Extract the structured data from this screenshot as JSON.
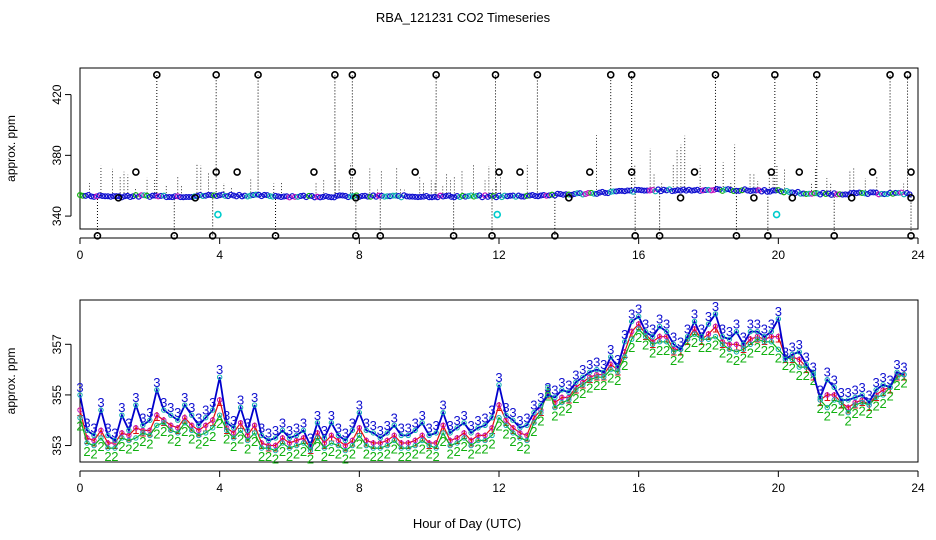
{
  "figure": {
    "title": "RBA_121231  CO2 Timeseries",
    "xlabel": "Hour of Day (UTC)"
  },
  "colors": {
    "axis": "#000000",
    "outlier_marker": "#000000",
    "flagged_marker": "#00cccc",
    "stem_line": "#000000",
    "series_1": "#e01010",
    "series_2": "#10b010",
    "series_3": "#1010d0",
    "series_3_line": "#0000cc",
    "cyan_marker": "#10b0b0",
    "magenta_marker": "#c010c0"
  },
  "chart_data": [
    {
      "type": "scatter",
      "ylabel": "approx. ppm",
      "xlim": [
        0,
        24
      ],
      "ylim": [
        331.5,
        437.5
      ],
      "x_ticks": [
        0,
        4,
        8,
        12,
        16,
        20,
        24
      ],
      "y_ticks": [
        340,
        380,
        420
      ],
      "y_tick_labels": [
        "340",
        "380",
        "420"
      ],
      "x_tick_labels": [
        "0",
        "4",
        "8",
        "12",
        "16",
        "20",
        "24"
      ],
      "grid": false,
      "baseline": [
        [
          0.0,
          353.5
        ],
        [
          1.0,
          353.0
        ],
        [
          2.0,
          353.3
        ],
        [
          3.0,
          353.0
        ],
        [
          4.0,
          353.8
        ],
        [
          5.0,
          353.5
        ],
        [
          6.0,
          353.0
        ],
        [
          7.0,
          353.0
        ],
        [
          8.0,
          353.0
        ],
        [
          9.0,
          353.0
        ],
        [
          10.0,
          353.0
        ],
        [
          11.0,
          353.0
        ],
        [
          12.0,
          353.0
        ],
        [
          13.0,
          353.5
        ],
        [
          14.0,
          354.3
        ],
        [
          15.0,
          355.5
        ],
        [
          16.0,
          356.8
        ],
        [
          17.0,
          357.0
        ],
        [
          18.0,
          357.3
        ],
        [
          19.0,
          357.0
        ],
        [
          20.0,
          356.5
        ],
        [
          21.0,
          354.5
        ],
        [
          22.0,
          354.8
        ],
        [
          23.0,
          355.0
        ],
        [
          23.8,
          354.8
        ]
      ],
      "high_outliers": [
        2.2,
        3.9,
        5.1,
        7.3,
        7.8,
        10.2,
        11.9,
        13.1,
        15.2,
        15.8,
        18.2,
        19.9,
        21.1,
        23.2,
        23.7
      ],
      "high_value": 433,
      "low_outliers": [
        0.5,
        2.7,
        3.8,
        5.6,
        7.9,
        8.6,
        10.7,
        11.8,
        13.6,
        15.9,
        16.6,
        18.8,
        19.7,
        21.6,
        23.8
      ],
      "low_value": 327,
      "mid_markers": [
        [
          1.6,
          369
        ],
        [
          3.9,
          369
        ],
        [
          4.5,
          369
        ],
        [
          6.7,
          369
        ],
        [
          7.8,
          369
        ],
        [
          9.6,
          369
        ],
        [
          12.0,
          369
        ],
        [
          12.6,
          369
        ],
        [
          14.6,
          369
        ],
        [
          15.8,
          369
        ],
        [
          17.6,
          369
        ],
        [
          19.8,
          369
        ],
        [
          20.6,
          369
        ],
        [
          22.7,
          369
        ],
        [
          23.8,
          369
        ],
        [
          1.1,
          352
        ],
        [
          3.3,
          352
        ],
        [
          7.9,
          352
        ],
        [
          14.0,
          352
        ],
        [
          17.2,
          352
        ],
        [
          19.3,
          352
        ],
        [
          20.4,
          352
        ],
        [
          22.1,
          352
        ],
        [
          23.8,
          352
        ]
      ],
      "flagged_markers": [
        [
          3.95,
          341
        ],
        [
          11.95,
          341
        ],
        [
          19.95,
          341
        ]
      ]
    },
    {
      "type": "line",
      "ylabel": "approx. ppm",
      "xlim": [
        0,
        24
      ],
      "ylim": [
        352.35,
        358.75
      ],
      "x_ticks": [
        0,
        4,
        8,
        12,
        16,
        20,
        24
      ],
      "x_tick_labels": [
        "0",
        "4",
        "8",
        "12",
        "16",
        "20",
        "24"
      ],
      "y_ticks": [
        353,
        355,
        357
      ],
      "y_tick_labels": [
        "353",
        "355",
        "357"
      ],
      "grid": false,
      "series": [
        {
          "marker": "3",
          "x": [
            0.0,
            0.2,
            0.4,
            0.6,
            0.8,
            1.0,
            1.2,
            1.4,
            1.6,
            1.8,
            2.0,
            2.2,
            2.4,
            2.6,
            2.8,
            3.0,
            3.2,
            3.4,
            3.6,
            3.8,
            4.0,
            4.2,
            4.4,
            4.6,
            4.8,
            5.0,
            5.2,
            5.4,
            5.6,
            5.8,
            6.0,
            6.2,
            6.4,
            6.6,
            6.8,
            7.0,
            7.2,
            7.4,
            7.6,
            7.8,
            8.0,
            8.2,
            8.4,
            8.6,
            8.8,
            9.0,
            9.2,
            9.4,
            9.6,
            9.8,
            10.0,
            10.2,
            10.4,
            10.6,
            10.8,
            11.0,
            11.2,
            11.4,
            11.6,
            11.8,
            12.0,
            12.2,
            12.4,
            12.6,
            12.8,
            13.0,
            13.2,
            13.4,
            13.6,
            13.8,
            14.0,
            14.2,
            14.4,
            14.6,
            14.8,
            15.0,
            15.2,
            15.4,
            15.6,
            15.8,
            16.0,
            16.2,
            16.4,
            16.6,
            16.8,
            17.0,
            17.2,
            17.4,
            17.6,
            17.8,
            18.0,
            18.2,
            18.4,
            18.6,
            18.8,
            19.0,
            19.2,
            19.4,
            19.6,
            19.8,
            20.0,
            20.2,
            20.4,
            20.6,
            20.8,
            21.0,
            21.2,
            21.4,
            21.6,
            21.8,
            22.0,
            22.2,
            22.4,
            22.6,
            22.8,
            23.0,
            23.2,
            23.4,
            23.6
          ],
          "y": [
            355.0,
            353.6,
            353.4,
            354.4,
            353.4,
            353.2,
            354.2,
            353.6,
            354.6,
            353.8,
            354.0,
            355.2,
            354.4,
            354.2,
            354.0,
            354.6,
            354.2,
            353.8,
            354.1,
            354.4,
            355.7,
            353.9,
            353.7,
            354.5,
            353.6,
            354.6,
            353.4,
            353.2,
            353.3,
            353.6,
            353.3,
            353.4,
            353.6,
            353.0,
            353.9,
            353.3,
            353.9,
            353.4,
            353.2,
            353.6,
            354.3,
            353.6,
            353.5,
            353.3,
            353.5,
            353.8,
            353.4,
            353.4,
            353.6,
            353.9,
            353.4,
            353.5,
            354.3,
            353.5,
            353.7,
            353.9,
            353.5,
            353.7,
            353.8,
            354.1,
            355.4,
            354.2,
            354.0,
            353.7,
            353.8,
            354.3,
            354.6,
            355.0,
            354.9,
            355.2,
            355.1,
            355.5,
            355.7,
            355.9,
            356.0,
            355.9,
            356.5,
            356.1,
            357.1,
            357.9,
            358.1,
            357.5,
            357.3,
            357.7,
            357.5,
            357.0,
            356.8,
            357.3,
            357.9,
            357.3,
            357.8,
            358.2,
            357.3,
            357.2,
            357.5,
            357.0,
            357.5,
            357.5,
            357.3,
            357.5,
            358.0,
            356.4,
            356.6,
            356.7,
            356.2,
            355.8,
            354.9,
            355.6,
            355.3,
            354.8,
            354.8,
            354.9,
            355.0,
            354.7,
            355.2,
            355.4,
            355.3,
            355.9,
            355.8
          ]
        },
        {
          "marker": "2",
          "x": [
            0.0,
            0.2,
            0.4,
            0.6,
            0.8,
            1.0,
            1.2,
            1.4,
            1.6,
            1.8,
            2.0,
            2.2,
            2.4,
            2.6,
            2.8,
            3.0,
            3.2,
            3.4,
            3.6,
            3.8,
            4.0,
            4.2,
            4.4,
            4.6,
            4.8,
            5.0,
            5.2,
            5.4,
            5.6,
            5.8,
            6.0,
            6.2,
            6.4,
            6.6,
            6.8,
            7.0,
            7.2,
            7.4,
            7.6,
            7.8,
            8.0,
            8.2,
            8.4,
            8.6,
            8.8,
            9.0,
            9.2,
            9.4,
            9.6,
            9.8,
            10.0,
            10.2,
            10.4,
            10.6,
            10.8,
            11.0,
            11.2,
            11.4,
            11.6,
            11.8,
            12.0,
            12.2,
            12.4,
            12.6,
            12.8,
            13.0,
            13.2,
            13.4,
            13.6,
            13.8,
            14.0,
            14.2,
            14.4,
            14.6,
            14.8,
            15.0,
            15.2,
            15.4,
            15.6,
            15.8,
            16.0,
            16.2,
            16.4,
            16.6,
            16.8,
            17.0,
            17.2,
            17.4,
            17.6,
            17.8,
            18.0,
            18.2,
            18.4,
            18.6,
            18.8,
            19.0,
            19.2,
            19.4,
            19.6,
            19.8,
            20.0,
            20.2,
            20.4,
            20.6,
            20.8,
            21.0,
            21.2,
            21.4,
            21.6,
            21.8,
            22.0,
            22.2,
            22.4,
            22.6,
            22.8,
            23.0,
            23.2,
            23.4,
            23.6
          ],
          "y": [
            354.1,
            353.1,
            353.0,
            353.3,
            352.9,
            352.9,
            353.3,
            353.2,
            353.3,
            353.5,
            353.4,
            353.8,
            353.9,
            353.6,
            353.5,
            353.9,
            353.6,
            353.4,
            353.5,
            353.7,
            354.2,
            353.6,
            353.3,
            353.6,
            353.2,
            353.5,
            352.9,
            352.9,
            352.8,
            353.1,
            352.9,
            353.0,
            353.1,
            352.8,
            353.3,
            352.9,
            353.1,
            353.0,
            352.8,
            353.0,
            353.4,
            353.0,
            352.9,
            352.9,
            353.0,
            353.2,
            352.9,
            352.9,
            353.0,
            353.2,
            353.0,
            352.9,
            353.5,
            353.0,
            353.1,
            353.3,
            353.0,
            353.2,
            353.2,
            353.4,
            354.1,
            353.8,
            353.5,
            353.3,
            353.2,
            353.9,
            354.3,
            355.3,
            354.5,
            354.7,
            354.8,
            355.2,
            355.4,
            355.6,
            355.7,
            355.7,
            356.0,
            355.9,
            356.5,
            357.2,
            357.6,
            357.3,
            357.0,
            357.1,
            357.1,
            356.7,
            356.8,
            357.2,
            357.4,
            357.2,
            357.2,
            357.3,
            357.0,
            356.8,
            356.7,
            356.8,
            357.0,
            357.2,
            357.1,
            357.1,
            356.8,
            356.5,
            356.4,
            356.1,
            356.1,
            355.9,
            354.8,
            354.5,
            354.8,
            354.7,
            354.3,
            354.6,
            354.7,
            354.6,
            354.9,
            355.0,
            355.3,
            355.7,
            355.8
          ]
        },
        {
          "marker": "1",
          "x": [
            0.0,
            0.2,
            0.4,
            0.6,
            0.8,
            1.0,
            1.2,
            1.4,
            1.6,
            1.8,
            2.0,
            2.2,
            2.4,
            2.6,
            2.8,
            3.0,
            3.2,
            3.4,
            3.6,
            3.8,
            4.0,
            4.2,
            4.4,
            4.6,
            4.8,
            5.0,
            5.2,
            5.4,
            5.6,
            5.8,
            6.0,
            6.2,
            6.4,
            6.6,
            6.8,
            7.0,
            7.2,
            7.4,
            7.6,
            7.8,
            8.0,
            8.2,
            8.4,
            8.6,
            8.8,
            9.0,
            9.2,
            9.4,
            9.6,
            9.8,
            10.0,
            10.2,
            10.4,
            10.6,
            10.8,
            11.0,
            11.2,
            11.4,
            11.6,
            11.8,
            12.0,
            12.2,
            12.4,
            12.6,
            12.8,
            13.0,
            13.2,
            13.4,
            13.6,
            13.8,
            14.0,
            14.2,
            14.4,
            14.6,
            14.8,
            15.0,
            15.2,
            15.4,
            15.6,
            15.8,
            16.0,
            16.2,
            16.4,
            16.6,
            16.8,
            17.0,
            17.2,
            17.4,
            17.6,
            17.8,
            18.0,
            18.2,
            18.4,
            18.6,
            18.8,
            19.0,
            19.2,
            19.4,
            19.6,
            19.8,
            20.0,
            20.2,
            20.4,
            20.6,
            20.8,
            21.0,
            21.2,
            21.4,
            21.6,
            21.8,
            22.0,
            22.2,
            22.4,
            22.6,
            22.8,
            23.0,
            23.2,
            23.4,
            23.6
          ],
          "y": [
            354.4,
            353.3,
            353.2,
            353.6,
            353.1,
            353.1,
            353.5,
            353.4,
            353.7,
            353.6,
            353.6,
            354.2,
            354.0,
            353.8,
            353.7,
            354.1,
            353.8,
            353.6,
            353.8,
            354.0,
            354.8,
            353.7,
            353.5,
            353.9,
            353.4,
            353.8,
            353.1,
            353.0,
            353.0,
            353.3,
            353.1,
            353.2,
            353.3,
            352.9,
            353.5,
            353.1,
            353.4,
            353.2,
            353.0,
            353.2,
            353.7,
            353.2,
            353.1,
            353.1,
            353.2,
            353.4,
            353.1,
            353.1,
            353.2,
            353.4,
            353.1,
            353.1,
            353.8,
            353.2,
            353.3,
            353.5,
            353.2,
            353.4,
            353.4,
            353.7,
            354.6,
            354.0,
            353.7,
            353.5,
            353.4,
            354.1,
            354.4,
            355.1,
            354.7,
            354.9,
            354.9,
            355.3,
            355.5,
            355.7,
            355.8,
            355.8,
            356.2,
            356.0,
            356.7,
            357.5,
            357.8,
            357.4,
            357.1,
            357.3,
            357.3,
            356.8,
            356.8,
            357.2,
            357.6,
            357.2,
            357.4,
            357.7,
            357.1,
            357.0,
            357.0,
            356.9,
            357.2,
            357.3,
            357.2,
            357.3,
            357.3,
            356.5,
            356.5,
            356.4,
            356.1,
            355.8,
            354.8,
            355.0,
            355.0,
            354.7,
            354.5,
            354.7,
            354.8,
            354.6,
            355.0,
            355.2,
            355.3,
            355.8,
            355.8
          ]
        }
      ]
    }
  ]
}
